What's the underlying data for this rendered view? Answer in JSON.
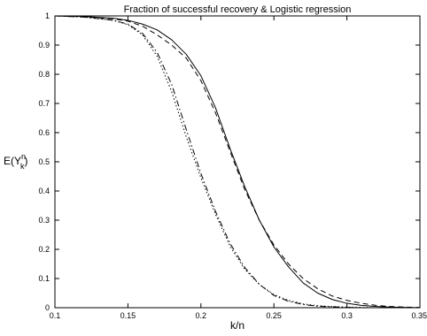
{
  "chart_data": {
    "type": "line",
    "title": "Fraction of successful recovery & Logistic regression",
    "xlabel": "k/n",
    "ylabel": {
      "base": "E(Y",
      "sup": "n",
      "sub": "k",
      "close": ")"
    },
    "xlim": [
      0.1,
      0.35
    ],
    "ylim": [
      0,
      1
    ],
    "xticks": [
      0.1,
      0.15,
      0.2,
      0.25,
      0.3,
      0.35
    ],
    "xtick_labels": [
      "0.1",
      "0.15",
      "0.2",
      "0.25",
      "0.3",
      "0.35"
    ],
    "yticks": [
      0,
      0.1,
      0.2,
      0.3,
      0.4,
      0.5,
      0.6,
      0.7,
      0.8,
      0.9,
      1
    ],
    "ytick_labels": [
      "0",
      "0.1",
      "0.2",
      "0.3",
      "0.4",
      "0.5",
      "0.6",
      "0.7",
      "0.8",
      "0.9",
      "1"
    ],
    "grid": false,
    "legend": "none",
    "series": [
      {
        "style": "solid",
        "color": "#000000",
        "x": [
          0.1,
          0.12,
          0.14,
          0.15,
          0.16,
          0.17,
          0.18,
          0.19,
          0.2,
          0.21,
          0.22,
          0.23,
          0.24,
          0.25,
          0.26,
          0.27,
          0.28,
          0.29,
          0.3,
          0.31,
          0.32,
          0.33,
          0.34,
          0.35
        ],
        "y": [
          1.0,
          0.998,
          0.992,
          0.985,
          0.972,
          0.952,
          0.918,
          0.868,
          0.795,
          0.685,
          0.545,
          0.415,
          0.3,
          0.208,
          0.14,
          0.085,
          0.05,
          0.028,
          0.015,
          0.008,
          0.004,
          0.002,
          0.001,
          0.0
        ]
      },
      {
        "style": "dashed",
        "color": "#000000",
        "x": [
          0.1,
          0.12,
          0.14,
          0.15,
          0.16,
          0.17,
          0.18,
          0.19,
          0.2,
          0.21,
          0.22,
          0.23,
          0.24,
          0.25,
          0.26,
          0.27,
          0.28,
          0.29,
          0.3,
          0.31,
          0.32,
          0.33,
          0.34,
          0.35
        ],
        "y": [
          1.0,
          0.997,
          0.99,
          0.982,
          0.965,
          0.935,
          0.9,
          0.855,
          0.778,
          0.668,
          0.535,
          0.405,
          0.3,
          0.215,
          0.15,
          0.1,
          0.065,
          0.04,
          0.025,
          0.015,
          0.008,
          0.004,
          0.002,
          0.001
        ]
      },
      {
        "style": "dotted",
        "color": "#000000",
        "x": [
          0.1,
          0.12,
          0.14,
          0.15,
          0.16,
          0.17,
          0.18,
          0.19,
          0.2,
          0.21,
          0.22,
          0.23,
          0.24,
          0.25,
          0.26,
          0.27,
          0.28,
          0.29,
          0.3,
          0.31,
          0.32,
          0.33,
          0.34,
          0.35
        ],
        "y": [
          1.0,
          0.996,
          0.985,
          0.97,
          0.935,
          0.862,
          0.74,
          0.585,
          0.445,
          0.32,
          0.21,
          0.132,
          0.08,
          0.045,
          0.025,
          0.013,
          0.007,
          0.004,
          0.002,
          0.001,
          0.0,
          0.0,
          0.0,
          0.0
        ]
      },
      {
        "style": "dashdot",
        "color": "#000000",
        "x": [
          0.1,
          0.12,
          0.14,
          0.15,
          0.16,
          0.17,
          0.18,
          0.19,
          0.2,
          0.21,
          0.22,
          0.23,
          0.24,
          0.25,
          0.26,
          0.27,
          0.28,
          0.29,
          0.3,
          0.31,
          0.32,
          0.33,
          0.34,
          0.35
        ],
        "y": [
          1.0,
          0.996,
          0.985,
          0.972,
          0.94,
          0.875,
          0.765,
          0.61,
          0.46,
          0.33,
          0.22,
          0.138,
          0.08,
          0.042,
          0.022,
          0.011,
          0.005,
          0.003,
          0.001,
          0.0,
          0.0,
          0.0,
          0.0,
          0.0
        ]
      }
    ]
  }
}
